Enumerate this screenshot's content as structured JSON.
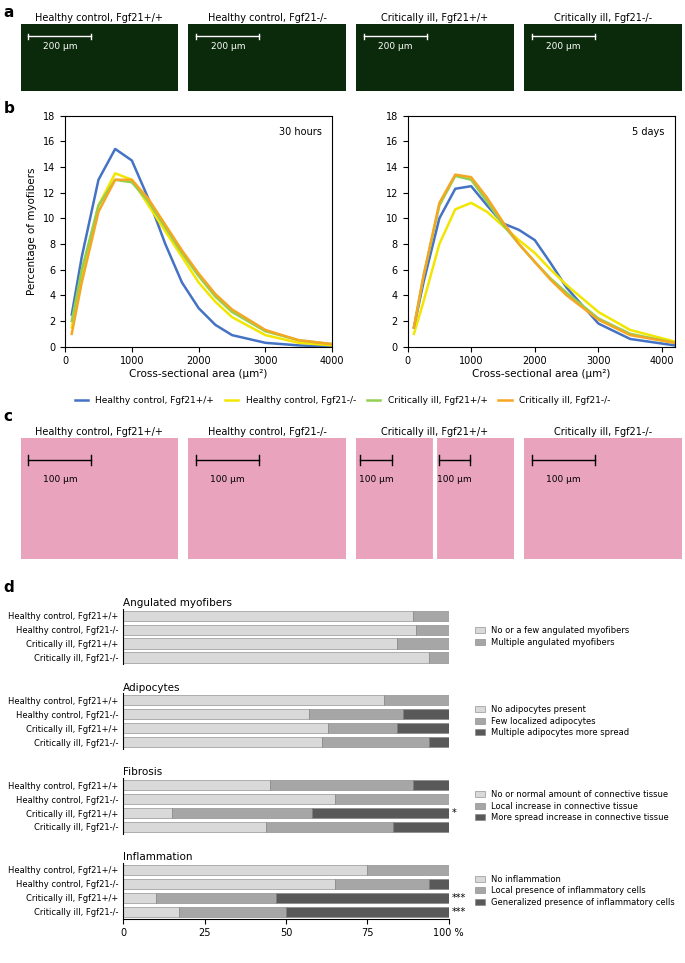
{
  "chart_data": [
    {
      "type": "image",
      "panel": "a",
      "images": [
        {
          "title": "Healthy control, Fgf21+/+",
          "scale_bars": [
            "200 µm"
          ]
        },
        {
          "title": "Healthy control, Fgf21-/-",
          "scale_bars": [
            "200 µm"
          ]
        },
        {
          "title": "Critically ill, Fgf21+/+",
          "scale_bars": [
            "200 µm"
          ]
        },
        {
          "title": "Critically ill, Fgf21-/-",
          "scale_bars": [
            "200 µm"
          ]
        }
      ]
    },
    {
      "type": "line",
      "panel": "b",
      "title": "30 hours",
      "ylabel": "Percentage of myofibers",
      "xlabel": "Cross-sectional area (µm²)",
      "x": [
        100,
        250,
        500,
        750,
        1000,
        1250,
        1500,
        1750,
        2000,
        2250,
        2500,
        3000,
        3500,
        4000
      ],
      "xlim": [
        0,
        4000
      ],
      "xticks": [
        0,
        1000,
        2000,
        3000,
        4000
      ],
      "ylim": [
        0,
        18
      ],
      "yticks": [
        0,
        2,
        4,
        6,
        8,
        10,
        12,
        14,
        16,
        18
      ],
      "legend": "upper center",
      "series": [
        {
          "name": "Healthy control, Fgf21+/+",
          "color": "#4472C4",
          "values": [
            2.5,
            7,
            13,
            15.4,
            14.5,
            11.5,
            8,
            5,
            3,
            1.7,
            0.9,
            0.3,
            0.1,
            0
          ]
        },
        {
          "name": "Healthy control, Fgf21-/-",
          "color": "#F2E600",
          "values": [
            1.5,
            5.5,
            11,
            13.5,
            13,
            11,
            9,
            7,
            5,
            3.5,
            2.3,
            0.9,
            0.3,
            0.1
          ]
        },
        {
          "name": "Critically ill, Fgf21+/+",
          "color": "#92D050",
          "values": [
            2,
            6,
            11,
            13,
            12.8,
            11.3,
            9.3,
            7.3,
            5.5,
            3.9,
            2.7,
            1.2,
            0.5,
            0.2
          ]
        },
        {
          "name": "Critically ill, Fgf21-/-",
          "color": "#F5A623",
          "values": [
            1,
            5,
            10.5,
            13,
            13,
            11.5,
            9.5,
            7.5,
            5.7,
            4.1,
            2.9,
            1.3,
            0.5,
            0.2
          ]
        }
      ]
    },
    {
      "type": "line",
      "title": "5 days",
      "xlabel": "Cross-sectional area (µm²)",
      "x": [
        100,
        250,
        500,
        750,
        1000,
        1250,
        1500,
        1750,
        2000,
        2250,
        2500,
        3000,
        3500,
        4200
      ],
      "xlim": [
        0,
        4200
      ],
      "xticks": [
        0,
        1000,
        2000,
        3000,
        4000
      ],
      "ylim": [
        0,
        18
      ],
      "yticks": [
        0,
        2,
        4,
        6,
        8,
        10,
        12,
        14,
        16,
        18
      ],
      "series": [
        {
          "name": "Healthy control, Fgf21+/+",
          "color": "#4472C4",
          "values": [
            1.5,
            5,
            10,
            12.3,
            12.5,
            11,
            9.6,
            9.1,
            8.3,
            6.5,
            4.6,
            1.8,
            0.6,
            0.1
          ]
        },
        {
          "name": "Healthy control, Fgf21-/-",
          "color": "#F2E600",
          "values": [
            1,
            3.5,
            8,
            10.7,
            11.2,
            10.5,
            9.4,
            8.3,
            7.3,
            6,
            4.8,
            2.7,
            1.3,
            0.4
          ]
        },
        {
          "name": "Critically ill, Fgf21+/+",
          "color": "#92D050",
          "values": [
            1.5,
            5.5,
            11,
            13.3,
            13,
            11.3,
            9.5,
            8,
            6.6,
            5.3,
            4.2,
            2.2,
            1,
            0.3
          ]
        },
        {
          "name": "Critically ill, Fgf21-/-",
          "color": "#F5A623",
          "values": [
            1.5,
            5.5,
            11.2,
            13.4,
            13.2,
            11.6,
            9.7,
            8,
            6.6,
            5.2,
            4,
            2.1,
            0.9,
            0.3
          ]
        }
      ]
    },
    {
      "type": "image",
      "panel": "c",
      "images": [
        {
          "title": "Healthy control, Fgf21+/+",
          "scale_bars": [
            "100 µm"
          ]
        },
        {
          "title": "Healthy control, Fgf21-/-",
          "scale_bars": [
            "100 µm"
          ]
        },
        {
          "title": "Critically ill, Fgf21+/+",
          "scale_bars": [
            "100 µm",
            "100 µm"
          ]
        },
        {
          "title": "Critically ill, Fgf21-/-",
          "scale_bars": [
            "100 µm"
          ]
        }
      ]
    },
    {
      "type": "bar",
      "panel": "d",
      "orientation": "horizontal",
      "stacked": true,
      "title": "Angulated myofibers",
      "legend": "right",
      "xlim": [
        0,
        100
      ],
      "categories": [
        "Healthy control, Fgf21+/+",
        "Healthy control, Fgf21-/-",
        "Critically ill, Fgf21+/+",
        "Critically ill, Fgf21-/-"
      ],
      "series": [
        {
          "name": "No or a few angulated myofibers",
          "color": "#D9D9D9",
          "values": [
            89,
            90,
            84,
            94
          ]
        },
        {
          "name": "Multiple angulated myofibers",
          "color": "#A6A6A6",
          "values": [
            11,
            10,
            16,
            6
          ]
        }
      ]
    },
    {
      "type": "bar",
      "orientation": "horizontal",
      "stacked": true,
      "title": "Adipocytes",
      "legend": "right",
      "xlim": [
        0,
        100
      ],
      "categories": [
        "Healthy control, Fgf21+/+",
        "Healthy control, Fgf21-/-",
        "Critically ill, Fgf21+/+",
        "Critically ill, Fgf21-/-"
      ],
      "series": [
        {
          "name": "No adipocytes present",
          "color": "#D9D9D9",
          "values": [
            80,
            57,
            63,
            61
          ]
        },
        {
          "name": "Few localized adipocytes",
          "color": "#A6A6A6",
          "values": [
            20,
            29,
            21,
            33
          ]
        },
        {
          "name": "Multiple adipocytes more spread",
          "color": "#595959",
          "values": [
            0,
            14,
            16,
            6
          ]
        }
      ]
    },
    {
      "type": "bar",
      "orientation": "horizontal",
      "stacked": true,
      "title": "Fibrosis",
      "legend": "right",
      "xlim": [
        0,
        100
      ],
      "categories": [
        "Healthy control, Fgf21+/+",
        "Healthy control, Fgf21-/-",
        "Critically ill, Fgf21+/+",
        "Critically ill, Fgf21-/-"
      ],
      "series": [
        {
          "name": "No or normal amount of connective tissue",
          "color": "#D9D9D9",
          "values": [
            45,
            65,
            15,
            44
          ]
        },
        {
          "name": "Local increase in connective tissue",
          "color": "#A6A6A6",
          "values": [
            44,
            35,
            43,
            39
          ]
        },
        {
          "name": "More spread increase in connective tissue",
          "color": "#595959",
          "values": [
            11,
            0,
            42,
            17
          ]
        }
      ],
      "annotations": [
        {
          "category": "Critically ill, Fgf21+/+",
          "text": "*"
        }
      ]
    },
    {
      "type": "bar",
      "orientation": "horizontal",
      "stacked": true,
      "title": "Inflammation",
      "legend": "right",
      "xlim": [
        0,
        100
      ],
      "xticks": [
        0,
        25,
        50,
        75,
        {
          "value": 100,
          "label": "100 %"
        }
      ],
      "categories": [
        "Healthy control, Fgf21+/+",
        "Healthy control, Fgf21-/-",
        "Critically ill, Fgf21+/+",
        "Critically ill, Fgf21-/-"
      ],
      "series": [
        {
          "name": "No inflammation",
          "color": "#D9D9D9",
          "values": [
            75,
            65,
            10,
            17
          ]
        },
        {
          "name": "Local presence of inflammatory cells",
          "color": "#A6A6A6",
          "values": [
            25,
            29,
            37,
            33
          ]
        },
        {
          "name": "Generalized presence of inflammatory cells",
          "color": "#595959",
          "values": [
            0,
            6,
            53,
            50
          ]
        }
      ],
      "annotations": [
        {
          "category": "Critically ill, Fgf21+/+",
          "text": "***"
        },
        {
          "category": "Critically ill, Fgf21-/-",
          "text": "***"
        }
      ]
    }
  ]
}
